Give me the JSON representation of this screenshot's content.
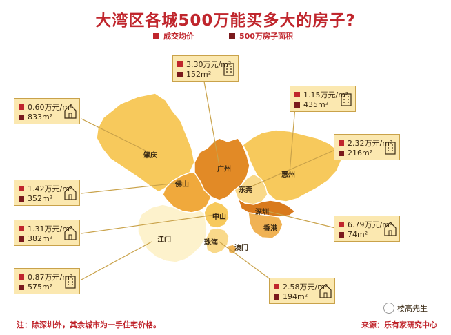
{
  "title": "大湾区各城500万能买多大的房子?",
  "legend": {
    "price_label": "成交均价",
    "area_label": "500万房子面积",
    "price_color": "#c0262d",
    "area_color": "#7a1a1d"
  },
  "cities": {
    "zhaoqing": {
      "name": "肇庆",
      "price": "0.60万元/m²",
      "area": "833m²"
    },
    "guangzhou": {
      "name": "广州",
      "price": "3.30万元/m²",
      "area": "152m²"
    },
    "huizhou": {
      "name": "惠州",
      "price": "1.15万元/m²",
      "area": "435m²"
    },
    "dongguan": {
      "name": "东莞",
      "price": "2.32万元/m²",
      "area": "216m²"
    },
    "foshan": {
      "name": "佛山",
      "price": "1.42万元/m²",
      "area": "352m²"
    },
    "zhongshan": {
      "name": "中山",
      "price": "1.31万元/m²",
      "area": "382m²"
    },
    "shenzhen": {
      "name": "深圳",
      "price": "6.79万元/m²",
      "area": "74m²"
    },
    "jiangmen": {
      "name": "江门",
      "price": "0.87万元/m²",
      "area": "575m²"
    },
    "zhuhai": {
      "name": "珠海",
      "price": "2.58万元/m²",
      "area": "194m²"
    },
    "hongkong": {
      "name": "香港"
    },
    "macau": {
      "name": "澳门"
    }
  },
  "footer": {
    "note": "注：除深圳外，其余城市为一手住宅价格。",
    "source": "来源：乐有家研究中心",
    "watermark": "楼高先生"
  },
  "colors": {
    "title": "#c0262d",
    "box_fill": "#fbe8b0",
    "box_border": "#c9a24a",
    "region_dark": "#d97a1d",
    "region_mid": "#f0a93c",
    "region_light": "#f7c95c",
    "region_pale": "#fbe6a8",
    "region_cream": "#fdf2cc"
  },
  "icons": {
    "zhaoqing": "house-icon",
    "guangzhou": "building-icon",
    "huizhou": "building-icon",
    "dongguan": "building-icon",
    "foshan": "house-icon",
    "zhongshan": "house-icon",
    "shenzhen": "house-icon",
    "jiangmen": "building-icon",
    "zhuhai": "house-icon"
  }
}
